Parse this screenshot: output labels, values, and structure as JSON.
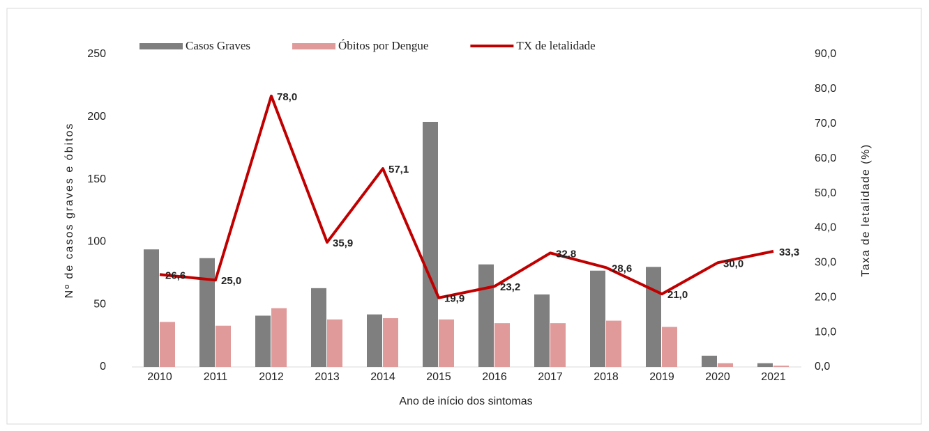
{
  "chart_data": {
    "type": "bar-line",
    "y_label": "Nº de casos graves e óbitos",
    "y2_label": "Taxa de letalidade (%)",
    "x_label": "Ano de início dos sintomas",
    "categories": [
      "2010",
      "2011",
      "2012",
      "2013",
      "2014",
      "2015",
      "2016",
      "2017",
      "2018",
      "2019",
      "2020",
      "2021"
    ],
    "series": [
      {
        "name": "Casos Graves",
        "type": "bar",
        "color": "#7f7f7f",
        "values": [
          94,
          87,
          41,
          63,
          42,
          196,
          82,
          58,
          77,
          80,
          9,
          3
        ]
      },
      {
        "name": "Óbitos por Dengue",
        "type": "bar",
        "color": "#e09a9a",
        "values": [
          36,
          33,
          47,
          38,
          39,
          38,
          35,
          35,
          37,
          32,
          3,
          1
        ]
      },
      {
        "name": "TX de letalidade",
        "type": "line",
        "axis": "y2",
        "color": "#c00000",
        "values": [
          26.6,
          25.0,
          78.0,
          35.9,
          57.1,
          19.9,
          23.2,
          32.8,
          28.6,
          21.0,
          30.0,
          33.3
        ],
        "value_labels": [
          "26,6",
          "25,0",
          "78,0",
          "35,9",
          "57,1",
          "19,9",
          "23,2",
          "32,8",
          "28,6",
          "21,0",
          "30,0",
          "33,3"
        ]
      }
    ],
    "ylim": [
      0,
      250
    ],
    "yticks": [
      0,
      50,
      100,
      150,
      200,
      250
    ],
    "y2lim": [
      0,
      90
    ],
    "y2ticks": [
      {
        "value": 0,
        "label": "0,0"
      },
      {
        "value": 10,
        "label": "10,0"
      },
      {
        "value": 20,
        "label": "20,0"
      },
      {
        "value": 30,
        "label": "30,0"
      },
      {
        "value": 40,
        "label": "40,0"
      },
      {
        "value": 50,
        "label": "50,0"
      },
      {
        "value": 60,
        "label": "60,0"
      },
      {
        "value": 70,
        "label": "70,0"
      },
      {
        "value": 80,
        "label": "80,0"
      },
      {
        "value": 90,
        "label": "90,0"
      }
    ],
    "grid": false
  }
}
